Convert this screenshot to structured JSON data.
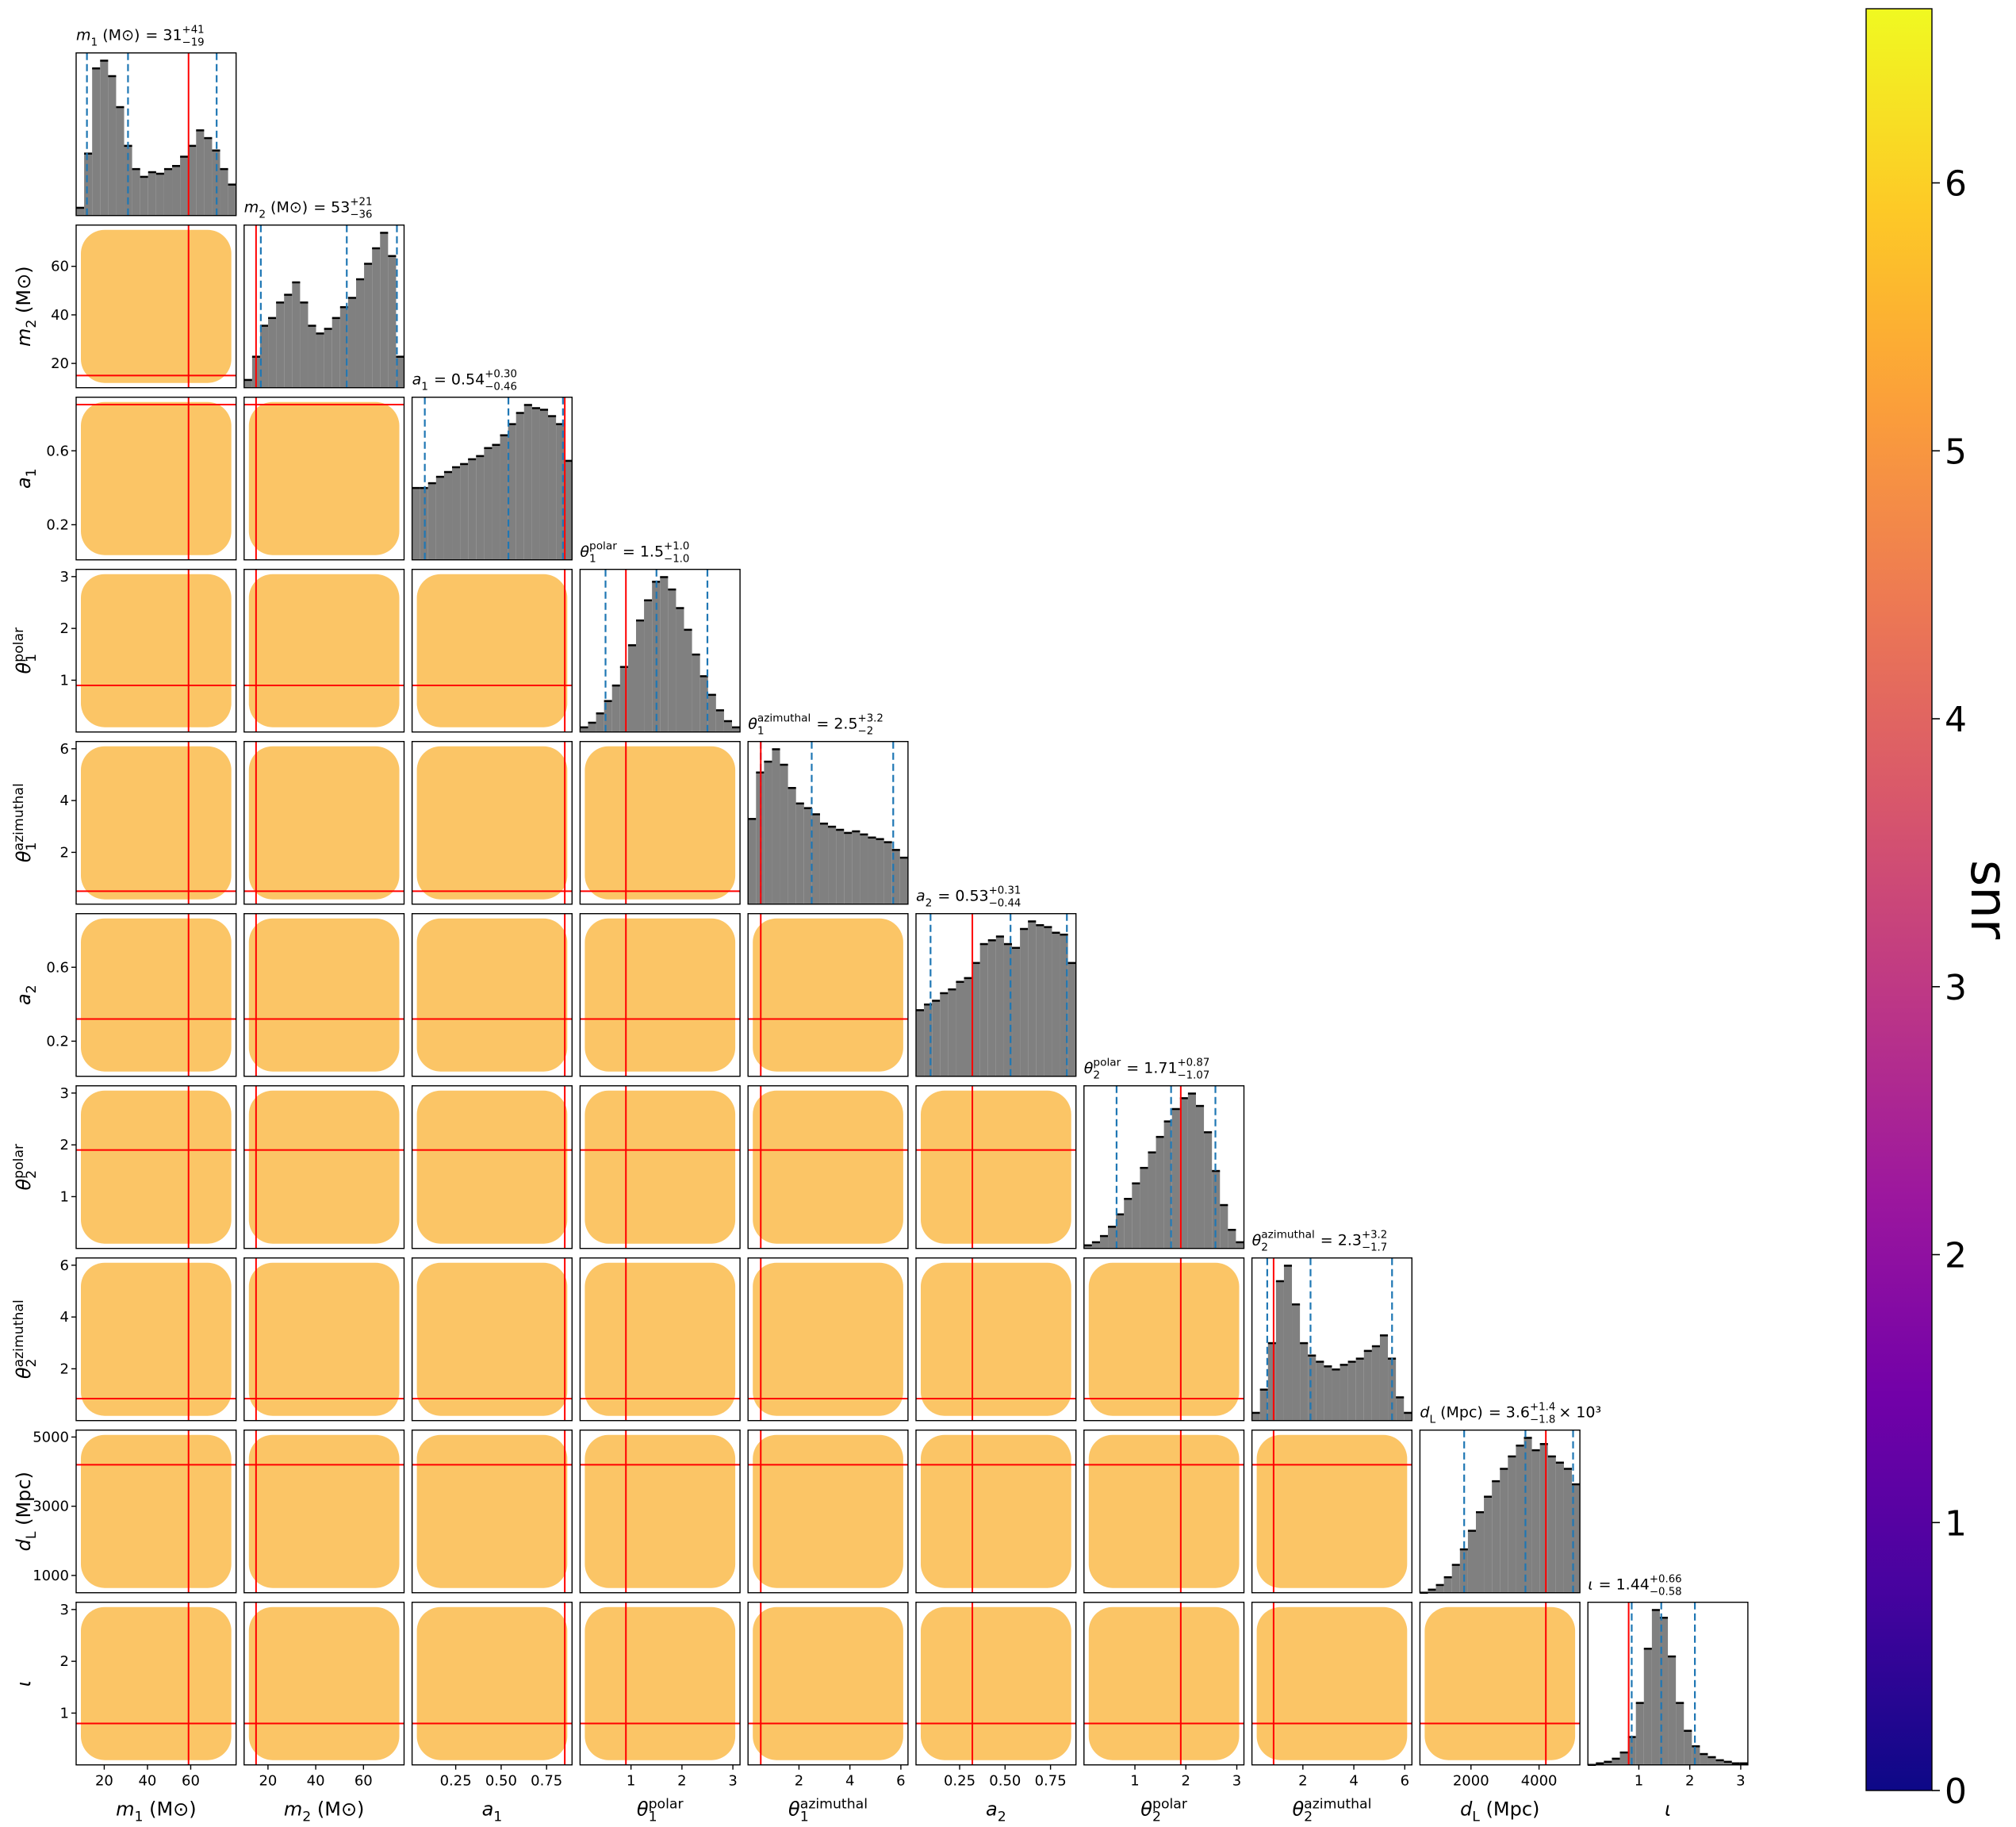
{
  "chart_data": {
    "type": "corner",
    "injection_color": "#ff0000",
    "quantile_color": "#1f77b4",
    "hist_color": "#808080",
    "parameters": [
      {
        "label": {
          "base": "m",
          "sub": "1",
          "tail": " (M⊙)"
        },
        "title": {
          "text": "= 31",
          "plus": "+41",
          "minus": "−19"
        },
        "lim": [
          7,
          81
        ],
        "ticks": [
          20,
          40,
          60
        ],
        "injection": 59,
        "quantiles": [
          12,
          31,
          72
        ],
        "bins": [
          7,
          10.7,
          14.4,
          18.1,
          21.8,
          25.5,
          29.2,
          32.9,
          36.6,
          40.3,
          44,
          47.7,
          51.4,
          55.1,
          58.8,
          62.5,
          66.2,
          69.9,
          73.6,
          77.3,
          81
        ],
        "counts": [
          5,
          40,
          95,
          100,
          90,
          70,
          45,
          30,
          25,
          28,
          27,
          30,
          32,
          38,
          45,
          55,
          50,
          42,
          30,
          20
        ]
      },
      {
        "label": {
          "base": "m",
          "sub": "2",
          "tail": " (M⊙)"
        },
        "title": {
          "text": "= 53",
          "plus": "+21",
          "minus": "−36"
        },
        "lim": [
          10,
          77
        ],
        "ticks": [
          20,
          40,
          60
        ],
        "yticks": [
          20,
          40,
          60
        ],
        "injection": 15,
        "quantiles": [
          17,
          53,
          74
        ],
        "bins": [
          10,
          13.35,
          16.7,
          20.05,
          23.4,
          26.75,
          30.1,
          33.45,
          36.8,
          40.15,
          43.5,
          46.85,
          50.2,
          53.55,
          56.9,
          60.25,
          63.6,
          66.95,
          70.3,
          73.65,
          77
        ],
        "counts": [
          5,
          20,
          40,
          45,
          55,
          60,
          68,
          55,
          40,
          35,
          38,
          45,
          52,
          58,
          70,
          80,
          90,
          100,
          85,
          20
        ]
      },
      {
        "label": {
          "base": "a",
          "sub": "1"
        },
        "title": {
          "text": "= 0.54",
          "plus": "+0.30",
          "minus": "−0.46"
        },
        "lim": [
          0.01,
          0.89
        ],
        "ticks": [
          0.25,
          {
            "value": 0.5,
            "label": "0.50"
          },
          0.75
        ],
        "yticks": [
          0.2,
          0.6
        ],
        "injection": 0.85,
        "quantiles": [
          0.08,
          0.54,
          0.84
        ],
        "bins": [
          0.01,
          0.054,
          0.098,
          0.142,
          0.186,
          0.23,
          0.274,
          0.318,
          0.362,
          0.406,
          0.45,
          0.494,
          0.538,
          0.582,
          0.626,
          0.67,
          0.714,
          0.758,
          0.802,
          0.846,
          0.89
        ],
        "counts": [
          45,
          45,
          48,
          52,
          55,
          58,
          60,
          63,
          65,
          70,
          72,
          78,
          85,
          92,
          97,
          95,
          94,
          90,
          85,
          62
        ]
      },
      {
        "label": {
          "base": "θ",
          "sub": "1",
          "sup": "polar"
        },
        "title": {
          "text": "= 1.5",
          "plus": "+1.0",
          "minus": "−1.0"
        },
        "lim": [
          0,
          3.14
        ],
        "ticks": [
          1,
          2,
          3
        ],
        "yticks": [
          1,
          2,
          3
        ],
        "injection": 0.9,
        "quantiles": [
          0.5,
          1.5,
          2.5
        ],
        "bins": [
          0,
          0.157,
          0.314,
          0.471,
          0.628,
          0.785,
          0.942,
          1.099,
          1.256,
          1.413,
          1.57,
          1.727,
          1.884,
          2.041,
          2.198,
          2.355,
          2.512,
          2.669,
          2.826,
          2.983,
          3.14
        ],
        "counts": [
          3,
          6,
          12,
          20,
          30,
          42,
          56,
          72,
          85,
          97,
          100,
          92,
          80,
          66,
          50,
          36,
          24,
          14,
          7,
          3
        ]
      },
      {
        "label": {
          "base": "θ",
          "sub": "1",
          "sup": "azimuthal"
        },
        "title": {
          "text": "= 2.5",
          "plus": "+3.2",
          "minus": "−2"
        },
        "lim": [
          0,
          6.28
        ],
        "ticks": [
          2,
          4,
          6
        ],
        "yticks": [
          2,
          4,
          6
        ],
        "injection": 0.5,
        "quantiles": [
          0.5,
          2.5,
          5.7
        ],
        "bins": [
          0,
          0.314,
          0.628,
          0.942,
          1.256,
          1.57,
          1.884,
          2.198,
          2.512,
          2.826,
          3.14,
          3.454,
          3.768,
          4.082,
          4.396,
          4.71,
          5.024,
          5.338,
          5.652,
          5.966,
          6.28
        ],
        "counts": [
          55,
          85,
          92,
          100,
          90,
          75,
          65,
          62,
          58,
          52,
          50,
          48,
          46,
          47,
          45,
          43,
          42,
          40,
          35,
          30
        ]
      },
      {
        "label": {
          "base": "a",
          "sub": "2"
        },
        "title": {
          "text": "= 0.53",
          "plus": "+0.31",
          "minus": "−0.44"
        },
        "lim": [
          0.01,
          0.89
        ],
        "ticks": [
          0.25,
          {
            "value": 0.5,
            "label": "0.50"
          },
          0.75
        ],
        "yticks": [
          0.2,
          0.6
        ],
        "injection": 0.32,
        "quantiles": [
          0.09,
          0.53,
          0.84
        ],
        "bins": [
          0.01,
          0.054,
          0.098,
          0.142,
          0.186,
          0.23,
          0.274,
          0.318,
          0.362,
          0.406,
          0.45,
          0.494,
          0.538,
          0.582,
          0.626,
          0.67,
          0.714,
          0.758,
          0.802,
          0.846,
          0.89
        ],
        "counts": [
          35,
          38,
          40,
          44,
          46,
          50,
          52,
          60,
          70,
          72,
          74,
          70,
          68,
          78,
          82,
          80,
          79,
          76,
          75,
          60
        ]
      },
      {
        "label": {
          "base": "θ",
          "sub": "2",
          "sup": "polar"
        },
        "title": {
          "text": "= 1.71",
          "plus": "+0.87",
          "minus": "−1.07"
        },
        "lim": [
          0,
          3.14
        ],
        "ticks": [
          1,
          2,
          3
        ],
        "yticks": [
          1,
          2,
          3
        ],
        "injection": 1.9,
        "quantiles": [
          0.64,
          1.71,
          2.58
        ],
        "bins": [
          0,
          0.157,
          0.314,
          0.471,
          0.628,
          0.785,
          0.942,
          1.099,
          1.256,
          1.413,
          1.57,
          1.727,
          1.884,
          2.041,
          2.198,
          2.355,
          2.512,
          2.669,
          2.826,
          2.983,
          3.14
        ],
        "counts": [
          2,
          4,
          8,
          14,
          22,
          32,
          42,
          52,
          62,
          72,
          82,
          90,
          97,
          100,
          92,
          75,
          50,
          28,
          12,
          4
        ]
      },
      {
        "label": {
          "base": "θ",
          "sub": "2",
          "sup": "azimuthal"
        },
        "title": {
          "text": "= 2.3",
          "plus": "+3.2",
          "minus": "−1.7"
        },
        "lim": [
          0,
          6.28
        ],
        "ticks": [
          2,
          4,
          6
        ],
        "yticks": [
          2,
          4,
          6
        ],
        "injection": 0.85,
        "quantiles": [
          0.6,
          2.3,
          5.5
        ],
        "bins": [
          0,
          0.314,
          0.628,
          0.942,
          1.256,
          1.57,
          1.884,
          2.198,
          2.512,
          2.826,
          3.14,
          3.454,
          3.768,
          4.082,
          4.396,
          4.71,
          5.024,
          5.338,
          5.652,
          5.966,
          6.28
        ],
        "counts": [
          5,
          20,
          50,
          90,
          100,
          75,
          50,
          42,
          38,
          35,
          33,
          36,
          38,
          40,
          45,
          48,
          55,
          40,
          15,
          5
        ]
      },
      {
        "label": {
          "base": "d",
          "sub": "L",
          "tail": " (Mpc)"
        },
        "title": {
          "text": "= 3.6",
          "plus": "+1.4",
          "minus": "−1.8",
          "suffix": "× 10³"
        },
        "lim": [
          500,
          5200
        ],
        "ticks": [
          2000,
          4000
        ],
        "yticks": [
          1000,
          3000,
          5000
        ],
        "injection": 4200,
        "quantiles": [
          1800,
          3600,
          5000
        ],
        "bins": [
          500,
          735,
          970,
          1205,
          1440,
          1675,
          1910,
          2145,
          2380,
          2615,
          2850,
          3085,
          3320,
          3555,
          3790,
          4025,
          4260,
          4495,
          4730,
          4965,
          5200
        ],
        "counts": [
          0,
          2,
          5,
          10,
          18,
          28,
          40,
          52,
          62,
          72,
          80,
          88,
          95,
          100,
          92,
          96,
          88,
          84,
          80,
          70
        ]
      },
      {
        "label": {
          "base": "ι"
        },
        "title": {
          "text": "= 1.44",
          "plus": "+0.66",
          "minus": "−0.58"
        },
        "lim": [
          0,
          3.14
        ],
        "ticks": [
          1,
          2,
          3
        ],
        "yticks": [
          1,
          2,
          3
        ],
        "injection": 0.8,
        "quantiles": [
          0.86,
          1.44,
          2.1
        ],
        "bins": [
          0,
          0.157,
          0.314,
          0.471,
          0.628,
          0.785,
          0.942,
          1.099,
          1.256,
          1.413,
          1.57,
          1.727,
          1.884,
          2.041,
          2.198,
          2.355,
          2.512,
          2.669,
          2.826,
          2.983,
          3.14
        ],
        "counts": [
          0,
          1,
          2,
          4,
          8,
          18,
          40,
          75,
          100,
          95,
          70,
          40,
          22,
          12,
          7,
          5,
          3,
          2,
          1,
          1
        ]
      }
    ],
    "colorbar": {
      "label": "snr",
      "lim": [
        0,
        6.65
      ],
      "ticks": [
        0,
        1,
        2,
        3,
        4,
        5,
        6
      ],
      "colormap": [
        "#0d0887",
        "#46039f",
        "#7201a8",
        "#9c179e",
        "#bd3786",
        "#d8576b",
        "#ed7953",
        "#fb9f3a",
        "#fdca26",
        "#f0f921"
      ]
    }
  }
}
